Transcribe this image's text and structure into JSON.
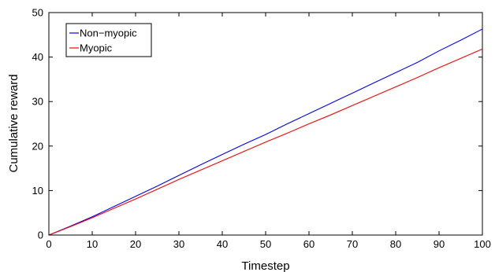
{
  "chart_data": {
    "type": "line",
    "xlabel": "Timestep",
    "ylabel": "Cumulative reward",
    "xlim": [
      0,
      100
    ],
    "ylim": [
      0,
      50
    ],
    "xticks": [
      "0",
      "10",
      "20",
      "30",
      "40",
      "50",
      "60",
      "70",
      "80",
      "90",
      "100"
    ],
    "yticks": [
      "0",
      "10",
      "20",
      "30",
      "40",
      "50"
    ],
    "grid": false,
    "legend_position": "top-left",
    "series": [
      {
        "name": "Non−myopic",
        "color": "#0000ff",
        "x": [
          0,
          5,
          10,
          15,
          20,
          25,
          30,
          35,
          40,
          45,
          50,
          55,
          60,
          65,
          70,
          75,
          80,
          85,
          90,
          95,
          100
        ],
        "y": [
          0,
          2.0,
          4.1,
          6.4,
          8.7,
          11.0,
          13.4,
          15.8,
          18.1,
          20.4,
          22.6,
          25.0,
          27.3,
          29.6,
          31.9,
          34.2,
          36.5,
          38.8,
          41.4,
          43.8,
          46.3
        ]
      },
      {
        "name": "Myopic",
        "color": "#ff0000",
        "x": [
          0,
          5,
          10,
          15,
          20,
          25,
          30,
          35,
          40,
          45,
          50,
          55,
          60,
          65,
          70,
          75,
          80,
          85,
          90,
          95,
          100
        ],
        "y": [
          0,
          1.9,
          3.9,
          6.0,
          8.1,
          10.3,
          12.5,
          14.6,
          16.7,
          18.8,
          20.9,
          22.9,
          25.0,
          27.0,
          29.1,
          31.2,
          33.3,
          35.4,
          37.6,
          39.7,
          41.8
        ]
      }
    ]
  }
}
